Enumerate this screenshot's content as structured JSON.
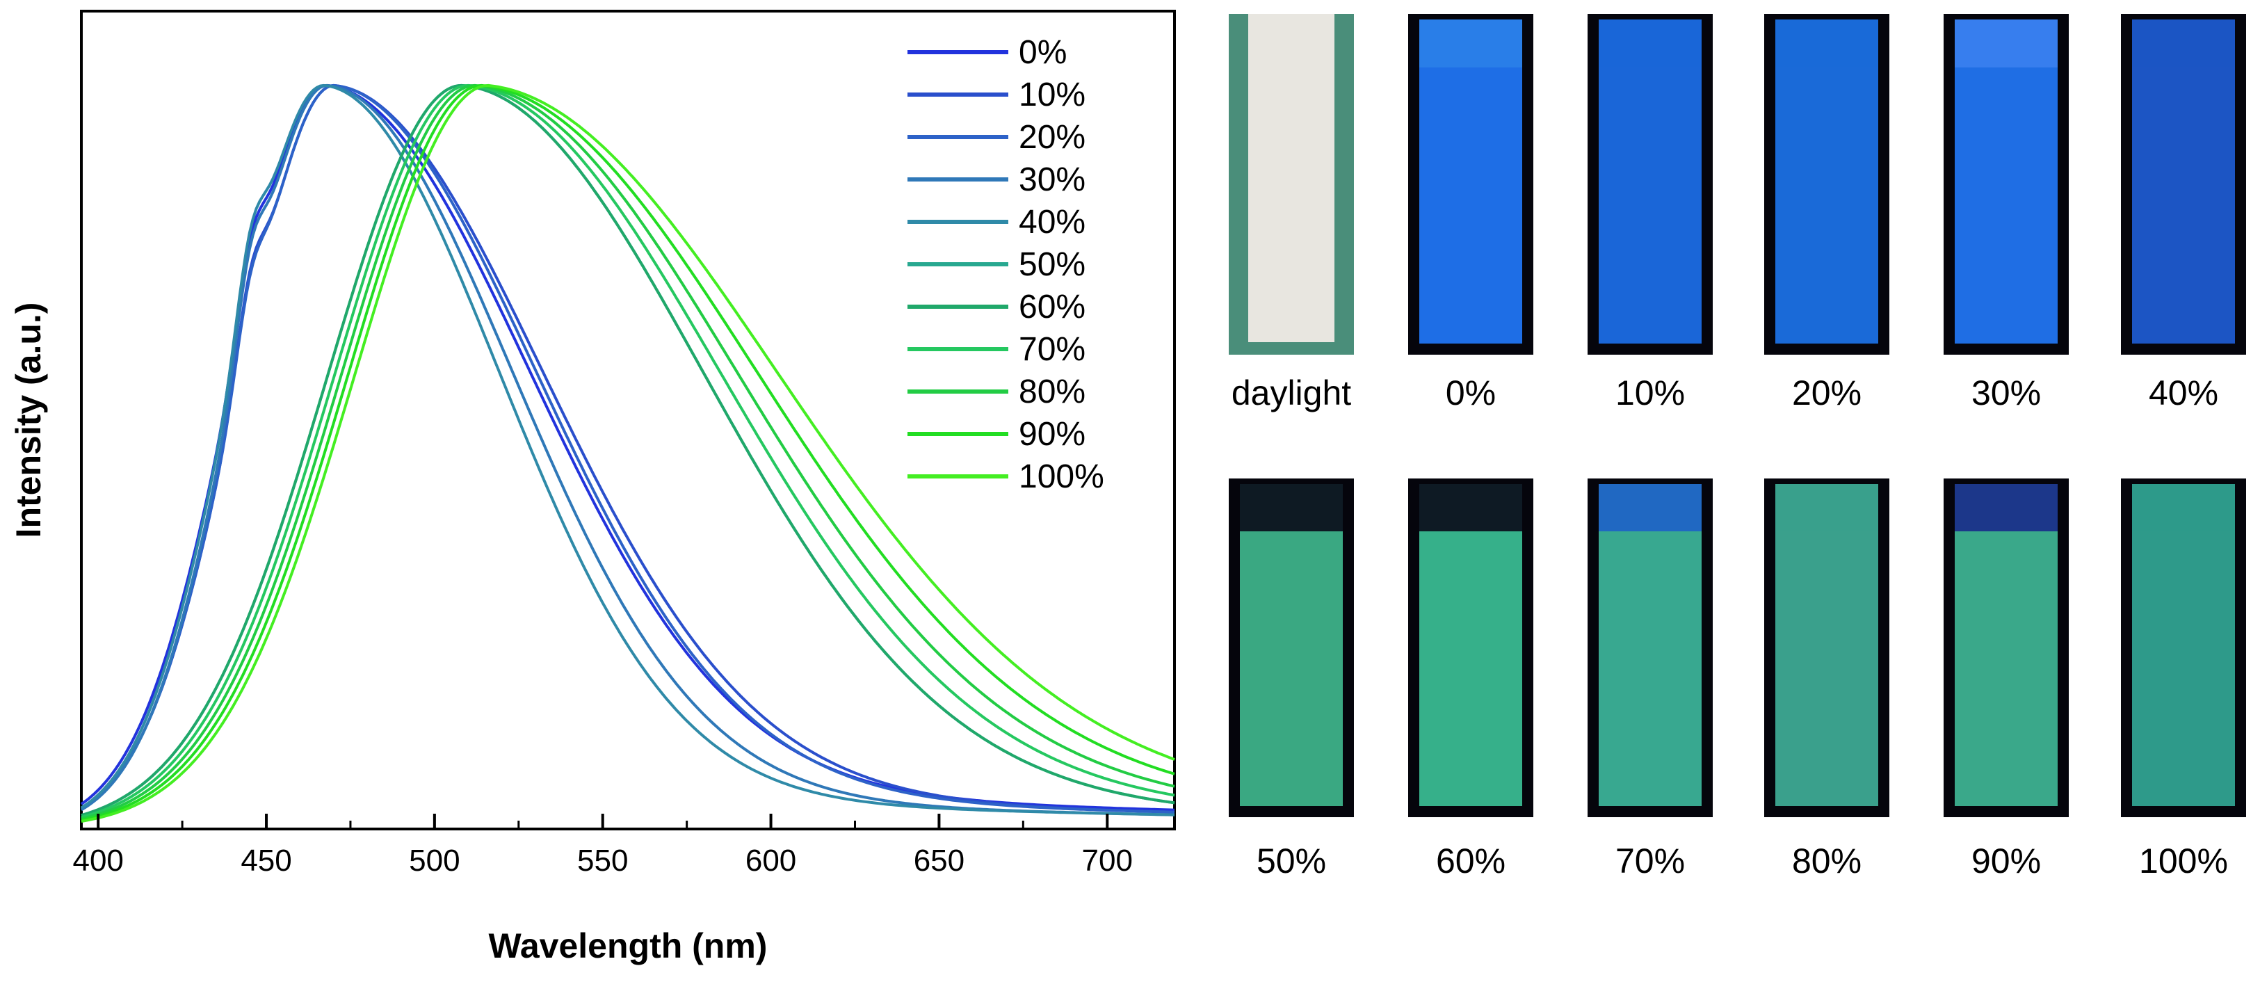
{
  "chart_data": {
    "type": "line",
    "xlabel": "Wavelength (nm)",
    "ylabel": "Intensity (a.u.)",
    "xlim": [
      395,
      720
    ],
    "ylim": [
      0,
      1.1
    ],
    "xticks": [
      400,
      450,
      500,
      550,
      600,
      650,
      700
    ],
    "minor_xtick_step": 25,
    "legend_position": "top-right",
    "series": [
      {
        "name": "0%",
        "color": "#2233dd",
        "peak": 468,
        "sigma_left": 28,
        "sigma_right": 60,
        "tail": 0.08,
        "shoulder": 0.22
      },
      {
        "name": "10%",
        "color": "#2a4fcc",
        "peak": 470,
        "sigma_left": 28,
        "sigma_right": 62,
        "tail": 0.07,
        "shoulder": 0.22
      },
      {
        "name": "20%",
        "color": "#2d62c8",
        "peak": 470,
        "sigma_left": 28,
        "sigma_right": 60,
        "tail": 0.07,
        "shoulder": 0.2
      },
      {
        "name": "30%",
        "color": "#2f78b8",
        "peak": 468,
        "sigma_left": 27,
        "sigma_right": 55,
        "tail": 0.06,
        "shoulder": 0.24
      },
      {
        "name": "40%",
        "color": "#2f8aa8",
        "peak": 467,
        "sigma_left": 27,
        "sigma_right": 52,
        "tail": 0.06,
        "shoulder": 0.24
      },
      {
        "name": "50%",
        "color": "#28a890",
        "peak": 508,
        "sigma_left": 40,
        "sigma_right": 72,
        "tail": 0.06,
        "shoulder": 0.0
      },
      {
        "name": "60%",
        "color": "#20a86a",
        "peak": 508,
        "sigma_left": 40,
        "sigma_right": 72,
        "tail": 0.06,
        "shoulder": 0.0
      },
      {
        "name": "70%",
        "color": "#25c860",
        "peak": 510,
        "sigma_left": 40,
        "sigma_right": 75,
        "tail": 0.07,
        "shoulder": 0.0
      },
      {
        "name": "80%",
        "color": "#22cc44",
        "peak": 512,
        "sigma_left": 40,
        "sigma_right": 78,
        "tail": 0.08,
        "shoulder": 0.0
      },
      {
        "name": "90%",
        "color": "#22dd22",
        "peak": 514,
        "sigma_left": 40,
        "sigma_right": 82,
        "tail": 0.09,
        "shoulder": 0.0
      },
      {
        "name": "100%",
        "color": "#44ee22",
        "peak": 516,
        "sigma_left": 40,
        "sigma_right": 86,
        "tail": 0.1,
        "shoulder": 0.0
      }
    ]
  },
  "photos": {
    "row1": [
      {
        "label": "daylight",
        "kind": "daylight",
        "bg": "#e8e6e0",
        "frame": "#4a8e7a",
        "top_color": "#e8e6e0"
      },
      {
        "label": "0%",
        "kind": "uv",
        "bg": "#1e6ee6",
        "top_color": "#2a7fe8"
      },
      {
        "label": "10%",
        "kind": "uv",
        "bg": "#1a66d8",
        "top_color": "#1a66d8"
      },
      {
        "label": "20%",
        "kind": "uv",
        "bg": "#1a6ad8",
        "top_color": "#1a6ad8"
      },
      {
        "label": "30%",
        "kind": "uv",
        "bg": "#1f6ee4",
        "top_color": "#3a80ee"
      },
      {
        "label": "40%",
        "kind": "uv",
        "bg": "#1c55c4",
        "top_color": "#1c55c4"
      }
    ],
    "row2": [
      {
        "label": "50%",
        "kind": "uv",
        "bg": "#3aa882",
        "top_color": "#0a0a18"
      },
      {
        "label": "60%",
        "kind": "uv",
        "bg": "#36b08a",
        "top_color": "#0a0a18"
      },
      {
        "label": "70%",
        "kind": "uv",
        "bg": "#38a890",
        "top_color": "#1e60c8"
      },
      {
        "label": "80%",
        "kind": "uv",
        "bg": "#3aa08c",
        "top_color": "#3aa08c"
      },
      {
        "label": "90%",
        "kind": "uv",
        "bg": "#3aa88a",
        "top_color": "#1a2a8a"
      },
      {
        "label": "100%",
        "kind": "uv",
        "bg": "#2e9a8a",
        "top_color": "#2e9a8a"
      }
    ]
  }
}
